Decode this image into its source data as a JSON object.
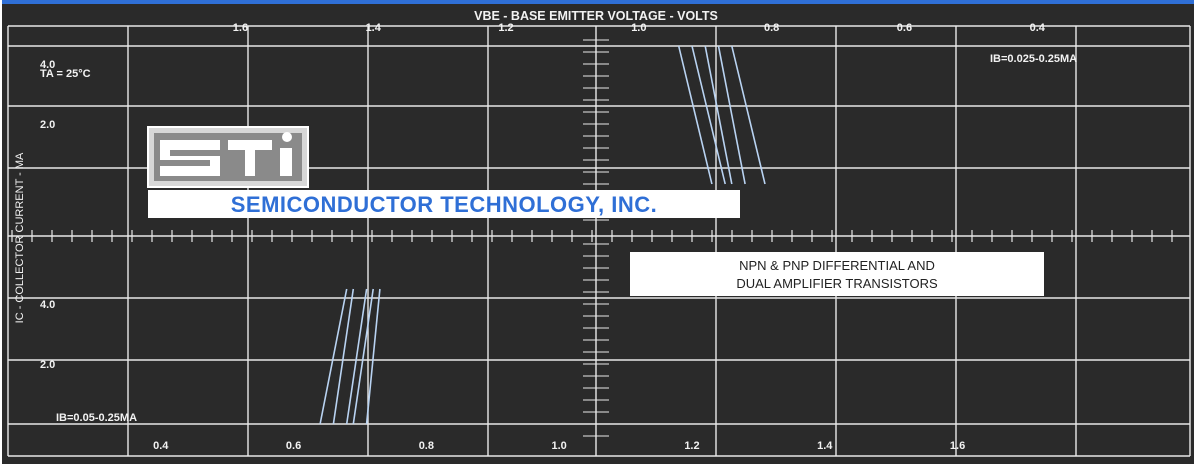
{
  "colors": {
    "background": "#2a2a2a",
    "grid": "#e8e8e8",
    "curve": "#b9d3f2",
    "text": "#f2f2f2",
    "logo_blue": "#2f6fd6",
    "top_strip": "#2f6fd6"
  },
  "chart_data": {
    "type": "line",
    "top_axis_title": "VBE - BASE EMITTER VOLTAGE - VOLTS",
    "ylabel": "IC - COLLECTOR CURRENT - MA",
    "top_ticks": [
      "1.6",
      "1.4",
      "1.2",
      "1.0",
      "0.8",
      "0.6",
      "0.4"
    ],
    "bottom_ticks": [
      "0.4",
      "0.6",
      "0.8",
      "1.0",
      "1.2",
      "1.4",
      "1.6"
    ],
    "upper_y_ticks": [
      "2.0",
      "4.0"
    ],
    "lower_y_ticks": [
      "4.0",
      "2.0"
    ],
    "top_xlim": [
      1.95,
      0.17
    ],
    "bottom_xlim": [
      0.17,
      1.95
    ],
    "ylim_upper": [
      0,
      5
    ],
    "ylim_lower": [
      0,
      5
    ],
    "grid": true,
    "annotations": {
      "temperature": "TA = 25°C",
      "ib_upper": "IB=0.025-0.25MA",
      "ib_lower": "IB=0.05-0.25MA",
      "product_line1": "NPN & PNP DIFFERENTIAL AND",
      "product_line2": "DUAL AMPLIFIER TRANSISTORS"
    },
    "series": [
      {
        "panel": "upper",
        "x": [
          0.94,
          0.89
        ],
        "y": [
          4.6,
          0.0
        ]
      },
      {
        "panel": "upper",
        "x": [
          0.92,
          0.87
        ],
        "y": [
          4.6,
          0.0
        ]
      },
      {
        "panel": "upper",
        "x": [
          0.9,
          0.86
        ],
        "y": [
          4.6,
          0.0
        ]
      },
      {
        "panel": "upper",
        "x": [
          0.88,
          0.84
        ],
        "y": [
          4.6,
          0.0
        ]
      },
      {
        "panel": "upper",
        "x": [
          0.86,
          0.81
        ],
        "y": [
          4.6,
          0.0
        ]
      },
      {
        "panel": "lower",
        "x": [
          0.64,
          0.68
        ],
        "y": [
          0.0,
          4.5
        ]
      },
      {
        "panel": "lower",
        "x": [
          0.66,
          0.69
        ],
        "y": [
          0.0,
          4.5
        ]
      },
      {
        "panel": "lower",
        "x": [
          0.68,
          0.71
        ],
        "y": [
          0.0,
          4.5
        ]
      },
      {
        "panel": "lower",
        "x": [
          0.69,
          0.72
        ],
        "y": [
          0.0,
          4.5
        ]
      },
      {
        "panel": "lower",
        "x": [
          0.71,
          0.73
        ],
        "y": [
          0.0,
          4.5
        ]
      }
    ]
  },
  "logo": {
    "mark": "STI",
    "company": "SEMICONDUCTOR TECHNOLOGY, INC."
  }
}
